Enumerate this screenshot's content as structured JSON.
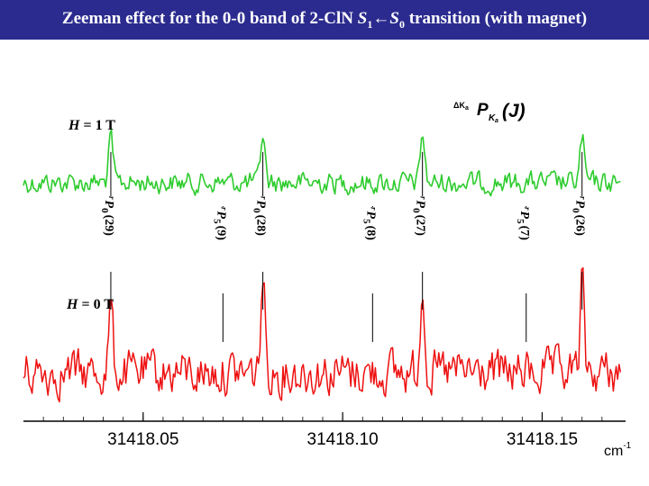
{
  "slide": {
    "title_part1": "Zeeman effect for the 0-0 band of 2-ClN ",
    "title_S1": "S",
    "title_S1_sub": "1",
    "title_arrow": "←",
    "title_S0": "S",
    "title_S0_sub": "0",
    "title_part2": " transition (with magnet)"
  },
  "colors": {
    "title_bar": "#2b2b8f",
    "trace_1T": "#2ecc2e",
    "trace_0T": "#ee1111",
    "axis": "#000000"
  },
  "chart_data": {
    "type": "line",
    "title": "Zeeman effect for the 0-0 band of 2-ClN S1←S0 transition (with magnet)",
    "xlabel": "cm-1",
    "ylabel": "",
    "xlim": [
      31418.02,
      31418.17
    ],
    "x_ticks": [
      31418.05,
      31418.1,
      31418.15
    ],
    "x_tick_labels": [
      "31418.05",
      "31418.10",
      "31418.15"
    ],
    "x_unit": "cm",
    "x_unit_sup": "-1",
    "series": [
      {
        "name": "H = 1 T",
        "label_H": "H",
        "label_value": "= 1 T",
        "color": "#2ecc2e",
        "peaks": [
          {
            "x": 31418.0419,
            "height": 0.9
          },
          {
            "x": 31418.08,
            "height": 1.0
          },
          {
            "x": 31418.12,
            "height": 1.0
          },
          {
            "x": 31418.16,
            "height": 0.9
          }
        ]
      },
      {
        "name": "H = 0 T",
        "label_H": "H",
        "label_value": "= 0 T",
        "color": "#ee1111",
        "peaks": [
          {
            "x": 31418.0419,
            "height": 0.7
          },
          {
            "x": 31418.08,
            "height": 1.0
          },
          {
            "x": 31418.12,
            "height": 1.0
          },
          {
            "x": 31418.16,
            "height": 0.9
          }
        ]
      }
    ],
    "legend": {
      "formula_prefix": "ΔK",
      "formula_prefix_sub": "a",
      "formula_P": "P",
      "formula_P_sub": "K",
      "formula_P_subsub": "a",
      "formula_J": "(J)"
    },
    "assignments": [
      {
        "label": "rP0 (29)",
        "prefix": "r",
        "P": "P",
        "sub": "0",
        "J": "(29)",
        "x": 31418.0419
      },
      {
        "label": "rP5 (9)",
        "prefix": "r",
        "P": "P",
        "sub": "5",
        "J": "(9)",
        "x": 31418.07
      },
      {
        "label": "rP0 (28)",
        "prefix": "r",
        "P": "P",
        "sub": "0",
        "J": "(28)",
        "x": 31418.08
      },
      {
        "label": "rP5 (8)",
        "prefix": "r",
        "P": "P",
        "sub": "5",
        "J": "(8)",
        "x": 31418.1075
      },
      {
        "label": "rP0 (27)",
        "prefix": "r",
        "P": "P",
        "sub": "0",
        "J": "(27)",
        "x": 31418.12
      },
      {
        "label": "rP5 (7)",
        "prefix": "r",
        "P": "P",
        "sub": "5",
        "J": "(7)",
        "x": 31418.146
      },
      {
        "label": "rP0 (26)",
        "prefix": "r",
        "P": "P",
        "sub": "0",
        "J": "(26)",
        "x": 31418.16
      }
    ]
  }
}
